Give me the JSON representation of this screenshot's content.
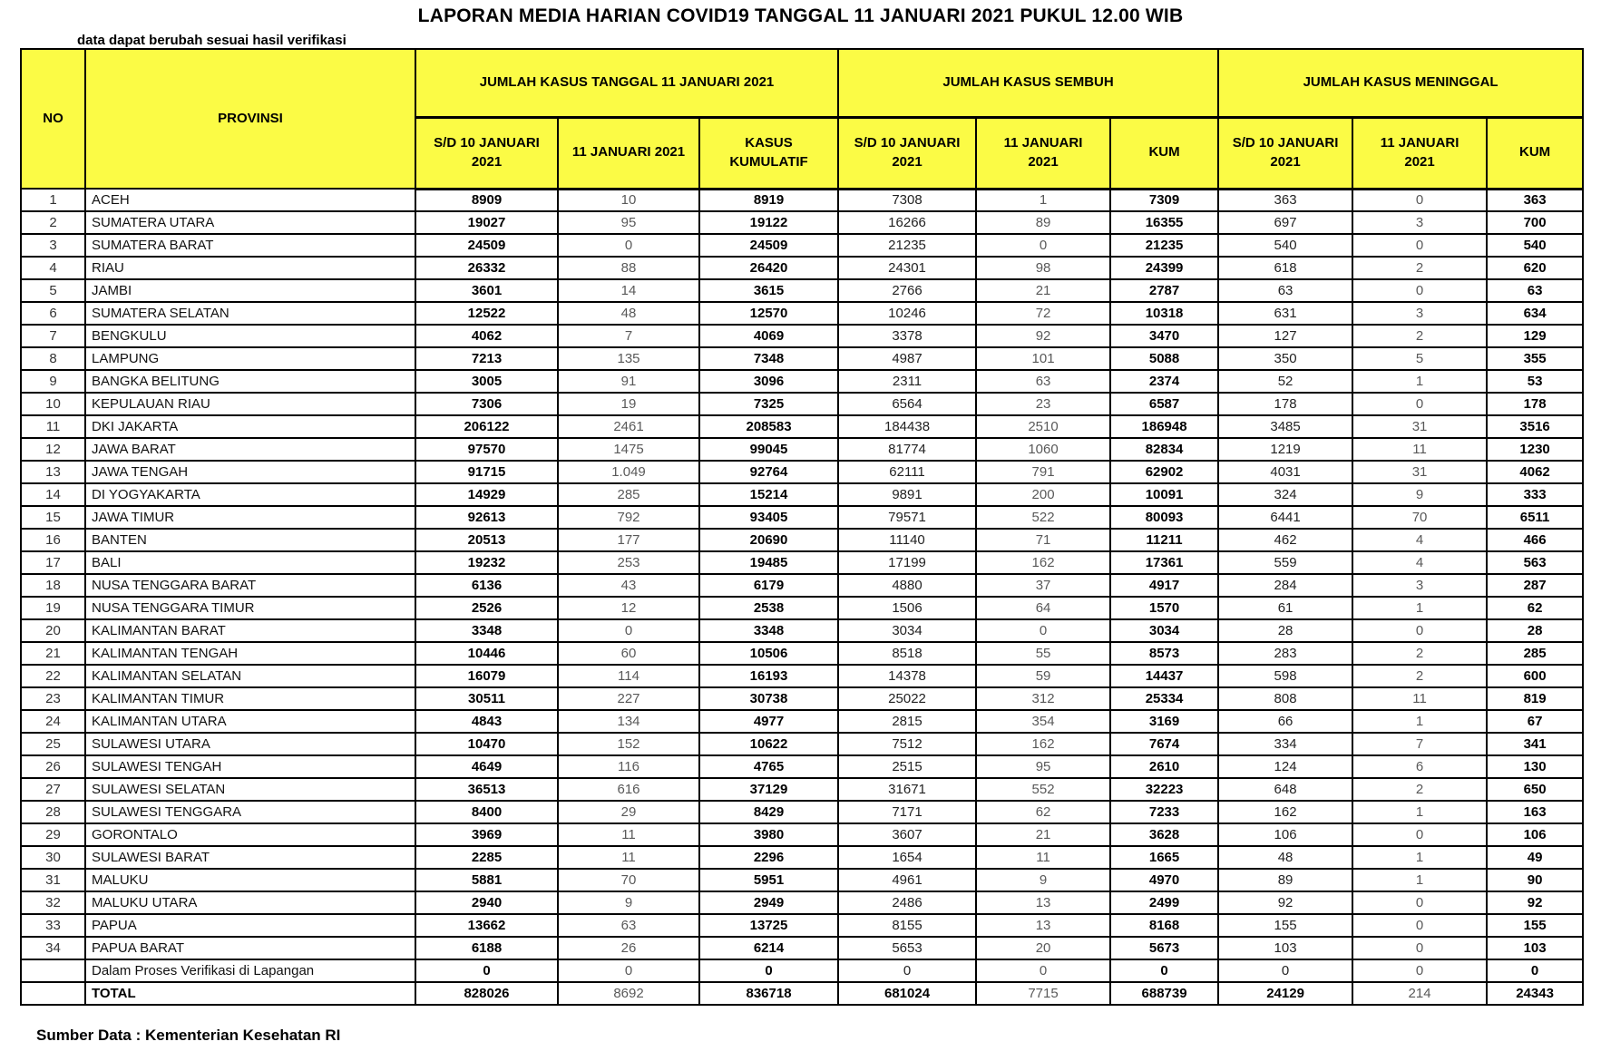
{
  "title": "LAPORAN MEDIA HARIAN COVID19 TANGGAL 11 JANUARI 2021 PUKUL 12.00 WIB",
  "note": "data dapat berubah sesuai hasil verifikasi",
  "footer": "Sumber Data : Kementerian Kesehatan RI",
  "colors": {
    "header_bg": "#FBFB45",
    "border": "#000000",
    "daily_text": "#595959"
  },
  "table": {
    "col_no": "NO",
    "col_provinsi": "PROVINSI",
    "groups": [
      {
        "label": "JUMLAH KASUS TANGGAL 11 JANUARI 2021",
        "cols": [
          "S/D 10 JANUARI\n2021",
          "11 JANUARI 2021",
          "KASUS\nKUMULATIF"
        ]
      },
      {
        "label": "JUMLAH KASUS SEMBUH",
        "cols": [
          "S/D 10 JANUARI\n2021",
          "11 JANUARI\n2021",
          "KUM"
        ]
      },
      {
        "label": "JUMLAH KASUS MENINGGAL",
        "cols": [
          "S/D 10 JANUARI\n2021",
          "11 JANUARI\n2021",
          "KUM"
        ]
      }
    ],
    "rows": [
      {
        "no": "1",
        "provinsi": "ACEH",
        "values": [
          "8909",
          "10",
          "8919",
          "7308",
          "1",
          "7309",
          "363",
          "0",
          "363"
        ]
      },
      {
        "no": "2",
        "provinsi": "SUMATERA UTARA",
        "values": [
          "19027",
          "95",
          "19122",
          "16266",
          "89",
          "16355",
          "697",
          "3",
          "700"
        ]
      },
      {
        "no": "3",
        "provinsi": "SUMATERA BARAT",
        "values": [
          "24509",
          "0",
          "24509",
          "21235",
          "0",
          "21235",
          "540",
          "0",
          "540"
        ]
      },
      {
        "no": "4",
        "provinsi": "RIAU",
        "values": [
          "26332",
          "88",
          "26420",
          "24301",
          "98",
          "24399",
          "618",
          "2",
          "620"
        ]
      },
      {
        "no": "5",
        "provinsi": "JAMBI",
        "values": [
          "3601",
          "14",
          "3615",
          "2766",
          "21",
          "2787",
          "63",
          "0",
          "63"
        ]
      },
      {
        "no": "6",
        "provinsi": "SUMATERA SELATAN",
        "values": [
          "12522",
          "48",
          "12570",
          "10246",
          "72",
          "10318",
          "631",
          "3",
          "634"
        ]
      },
      {
        "no": "7",
        "provinsi": "BENGKULU",
        "values": [
          "4062",
          "7",
          "4069",
          "3378",
          "92",
          "3470",
          "127",
          "2",
          "129"
        ]
      },
      {
        "no": "8",
        "provinsi": "LAMPUNG",
        "values": [
          "7213",
          "135",
          "7348",
          "4987",
          "101",
          "5088",
          "350",
          "5",
          "355"
        ]
      },
      {
        "no": "9",
        "provinsi": "BANGKA BELITUNG",
        "values": [
          "3005",
          "91",
          "3096",
          "2311",
          "63",
          "2374",
          "52",
          "1",
          "53"
        ]
      },
      {
        "no": "10",
        "provinsi": "KEPULAUAN RIAU",
        "values": [
          "7306",
          "19",
          "7325",
          "6564",
          "23",
          "6587",
          "178",
          "0",
          "178"
        ]
      },
      {
        "no": "11",
        "provinsi": "DKI JAKARTA",
        "values": [
          "206122",
          "2461",
          "208583",
          "184438",
          "2510",
          "186948",
          "3485",
          "31",
          "3516"
        ]
      },
      {
        "no": "12",
        "provinsi": "JAWA BARAT",
        "values": [
          "97570",
          "1475",
          "99045",
          "81774",
          "1060",
          "82834",
          "1219",
          "11",
          "1230"
        ]
      },
      {
        "no": "13",
        "provinsi": "JAWA TENGAH",
        "values": [
          "91715",
          "1.049",
          "92764",
          "62111",
          "791",
          "62902",
          "4031",
          "31",
          "4062"
        ]
      },
      {
        "no": "14",
        "provinsi": "DI YOGYAKARTA",
        "values": [
          "14929",
          "285",
          "15214",
          "9891",
          "200",
          "10091",
          "324",
          "9",
          "333"
        ]
      },
      {
        "no": "15",
        "provinsi": "JAWA TIMUR",
        "values": [
          "92613",
          "792",
          "93405",
          "79571",
          "522",
          "80093",
          "6441",
          "70",
          "6511"
        ]
      },
      {
        "no": "16",
        "provinsi": "BANTEN",
        "values": [
          "20513",
          "177",
          "20690",
          "11140",
          "71",
          "11211",
          "462",
          "4",
          "466"
        ]
      },
      {
        "no": "17",
        "provinsi": "BALI",
        "values": [
          "19232",
          "253",
          "19485",
          "17199",
          "162",
          "17361",
          "559",
          "4",
          "563"
        ]
      },
      {
        "no": "18",
        "provinsi": "NUSA TENGGARA BARAT",
        "values": [
          "6136",
          "43",
          "6179",
          "4880",
          "37",
          "4917",
          "284",
          "3",
          "287"
        ]
      },
      {
        "no": "19",
        "provinsi": "NUSA TENGGARA TIMUR",
        "values": [
          "2526",
          "12",
          "2538",
          "1506",
          "64",
          "1570",
          "61",
          "1",
          "62"
        ]
      },
      {
        "no": "20",
        "provinsi": "KALIMANTAN BARAT",
        "values": [
          "3348",
          "0",
          "3348",
          "3034",
          "0",
          "3034",
          "28",
          "0",
          "28"
        ]
      },
      {
        "no": "21",
        "provinsi": "KALIMANTAN TENGAH",
        "values": [
          "10446",
          "60",
          "10506",
          "8518",
          "55",
          "8573",
          "283",
          "2",
          "285"
        ]
      },
      {
        "no": "22",
        "provinsi": "KALIMANTAN SELATAN",
        "values": [
          "16079",
          "114",
          "16193",
          "14378",
          "59",
          "14437",
          "598",
          "2",
          "600"
        ]
      },
      {
        "no": "23",
        "provinsi": "KALIMANTAN TIMUR",
        "values": [
          "30511",
          "227",
          "30738",
          "25022",
          "312",
          "25334",
          "808",
          "11",
          "819"
        ]
      },
      {
        "no": "24",
        "provinsi": "KALIMANTAN UTARA",
        "values": [
          "4843",
          "134",
          "4977",
          "2815",
          "354",
          "3169",
          "66",
          "1",
          "67"
        ]
      },
      {
        "no": "25",
        "provinsi": "SULAWESI UTARA",
        "values": [
          "10470",
          "152",
          "10622",
          "7512",
          "162",
          "7674",
          "334",
          "7",
          "341"
        ]
      },
      {
        "no": "26",
        "provinsi": "SULAWESI TENGAH",
        "values": [
          "4649",
          "116",
          "4765",
          "2515",
          "95",
          "2610",
          "124",
          "6",
          "130"
        ]
      },
      {
        "no": "27",
        "provinsi": "SULAWESI SELATAN",
        "values": [
          "36513",
          "616",
          "37129",
          "31671",
          "552",
          "32223",
          "648",
          "2",
          "650"
        ]
      },
      {
        "no": "28",
        "provinsi": "SULAWESI TENGGARA",
        "values": [
          "8400",
          "29",
          "8429",
          "7171",
          "62",
          "7233",
          "162",
          "1",
          "163"
        ]
      },
      {
        "no": "29",
        "provinsi": "GORONTALO",
        "values": [
          "3969",
          "11",
          "3980",
          "3607",
          "21",
          "3628",
          "106",
          "0",
          "106"
        ]
      },
      {
        "no": "30",
        "provinsi": "SULAWESI BARAT",
        "values": [
          "2285",
          "11",
          "2296",
          "1654",
          "11",
          "1665",
          "48",
          "1",
          "49"
        ]
      },
      {
        "no": "31",
        "provinsi": "MALUKU",
        "values": [
          "5881",
          "70",
          "5951",
          "4961",
          "9",
          "4970",
          "89",
          "1",
          "90"
        ]
      },
      {
        "no": "32",
        "provinsi": "MALUKU UTARA",
        "values": [
          "2940",
          "9",
          "2949",
          "2486",
          "13",
          "2499",
          "92",
          "0",
          "92"
        ]
      },
      {
        "no": "33",
        "provinsi": "PAPUA",
        "values": [
          "13662",
          "63",
          "13725",
          "8155",
          "13",
          "8168",
          "155",
          "0",
          "155"
        ]
      },
      {
        "no": "34",
        "provinsi": "PAPUA BARAT",
        "values": [
          "6188",
          "26",
          "6214",
          "5653",
          "20",
          "5673",
          "103",
          "0",
          "103"
        ]
      },
      {
        "no": "",
        "provinsi": "Dalam Proses Verifikasi di Lapangan",
        "values": [
          "0",
          "0",
          "0",
          "0",
          "0",
          "0",
          "0",
          "0",
          "0"
        ]
      },
      {
        "no": "",
        "provinsi": "TOTAL",
        "is_total": true,
        "values": [
          "828026",
          "8692",
          "836718",
          "681024",
          "7715",
          "688739",
          "24129",
          "214",
          "24343"
        ]
      }
    ]
  }
}
